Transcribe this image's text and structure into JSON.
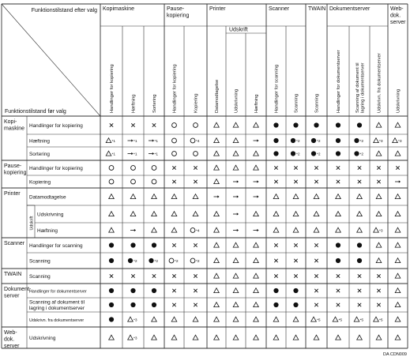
{
  "corner": {
    "top_right": "Funktionstilstand efter valg",
    "bottom_left": "Funktionstilstand før valg"
  },
  "col_groups": [
    {
      "label_lines": [
        "Kopimaskine"
      ]
    },
    {
      "label_lines": [
        "Pause-",
        "kopiering"
      ]
    },
    {
      "label_lines": [
        "Printer"
      ]
    },
    {
      "label_lines": [
        "Scanner"
      ]
    },
    {
      "label_lines": [
        "TWAIN"
      ]
    },
    {
      "label_lines": [
        "Dokumentserver"
      ]
    },
    {
      "label_lines": [
        "Web-",
        "dok.",
        "server"
      ]
    }
  ],
  "printer_subgroup": "Udskrift",
  "col_headers": [
    [
      "Handlinger for kopiering"
    ],
    [
      "Hæftning"
    ],
    [
      "Sortering"
    ],
    [
      "Handlinger for kopiering"
    ],
    [
      "Kopiering"
    ],
    [
      "Datamodtagelse"
    ],
    [
      "Udskrivning"
    ],
    [
      "Hæftning"
    ],
    [
      "Handlinger for scanning"
    ],
    [
      "Scanning"
    ],
    [
      "Scanning"
    ],
    [
      "Handlinger for dokumentserver"
    ],
    [
      "Scanning af dokument til",
      "lagring i dokumentserver"
    ],
    [
      "Udskrivn. fra dokumentserver"
    ],
    [
      "Udskrivning"
    ]
  ],
  "row_groups": [
    {
      "label_lines": [
        "Kopi-",
        "maskine"
      ]
    },
    {
      "label_lines": [
        "Pause-",
        "kopiering"
      ]
    },
    {
      "label_lines": [
        "Printer"
      ]
    },
    {
      "label_lines": [
        "Scanner"
      ]
    },
    {
      "label_lines": [
        "TWAIN"
      ]
    },
    {
      "label_lines": [
        "Dokument-",
        "server"
      ]
    },
    {
      "label_lines": [
        "Web-",
        "dok.",
        "server"
      ]
    }
  ],
  "printer_row_subgroup": "Udskrift",
  "rows": [
    {
      "label": [
        "Handlinger for kopiering"
      ],
      "cells": [
        "x",
        "x",
        "x",
        "o",
        "o",
        "t",
        "t",
        "t",
        "f",
        "f",
        "f",
        "f",
        "f",
        "t",
        "t"
      ]
    },
    {
      "label": [
        "Hæftning"
      ],
      "cells": [
        "t*1",
        "→*1",
        "→*1",
        "o",
        "o*4",
        "t",
        "t",
        "→",
        "f",
        "f*2",
        "f*2",
        "f",
        "f*2",
        "t*3",
        "t*3"
      ]
    },
    {
      "label": [
        "Sortering"
      ],
      "cells": [
        "t*1",
        "→*1",
        "→*1",
        "o",
        "o",
        "t",
        "t",
        "t",
        "f",
        "f*2",
        "f*2",
        "f",
        "f*2",
        "t",
        "t"
      ]
    },
    {
      "label": [
        "Handlinger for kopiering"
      ],
      "cells": [
        "o",
        "o",
        "o",
        "x",
        "x",
        "t",
        "t",
        "t",
        "x",
        "x",
        "x",
        "x",
        "x",
        "x",
        "x"
      ]
    },
    {
      "label": [
        "Kopiering"
      ],
      "cells": [
        "o",
        "o",
        "o",
        "x",
        "x",
        "t",
        "→",
        "→",
        "x",
        "x",
        "x",
        "x",
        "x",
        "x",
        "→"
      ]
    },
    {
      "label": [
        "Datamodtagelse"
      ],
      "cells": [
        "t",
        "t",
        "t",
        "t",
        "t",
        "→",
        "→",
        "→",
        "t",
        "t",
        "t",
        "t",
        "t",
        "t",
        "t"
      ]
    },
    {
      "label": [
        "Udskrivning"
      ],
      "cells": [
        "t",
        "t",
        "t",
        "t",
        "t",
        "t",
        "→",
        "t",
        "t",
        "t",
        "t",
        "t",
        "t",
        "t",
        "t"
      ]
    },
    {
      "label": [
        "Hæftning"
      ],
      "cells": [
        "t",
        "→",
        "t",
        "t",
        "o*4",
        "t",
        "→",
        "→",
        "t",
        "t",
        "t",
        "t",
        "t",
        "t*3",
        "t"
      ]
    },
    {
      "label": [
        "Handlinger for scanning"
      ],
      "cells": [
        "f",
        "f",
        "f",
        "x",
        "x",
        "t",
        "t",
        "t",
        "x",
        "x",
        "x",
        "f",
        "f",
        "t",
        "t"
      ]
    },
    {
      "label": [
        "Scanning"
      ],
      "cells": [
        "f",
        "f*2",
        "f*2",
        "o*2",
        "o*2",
        "t",
        "t",
        "t",
        "x",
        "x",
        "x",
        "f",
        "f",
        "t",
        "t"
      ]
    },
    {
      "label": [
        "Scanning"
      ],
      "cells": [
        "x",
        "x",
        "x",
        "x",
        "x",
        "t",
        "t",
        "t",
        "x",
        "x",
        "x",
        "x",
        "x",
        "x",
        "t"
      ]
    },
    {
      "label": [
        "Handlinger for dokumentserver"
      ],
      "cells": [
        "f",
        "f",
        "f",
        "x",
        "x",
        "t",
        "t",
        "t",
        "f",
        "f",
        "x",
        "x",
        "x",
        "x",
        "t"
      ]
    },
    {
      "label": [
        "Scanning af dokument til",
        "lagring i dokumentserver"
      ],
      "cells": [
        "f",
        "f",
        "f",
        "x",
        "x",
        "t",
        "t",
        "t",
        "f",
        "f",
        "x",
        "x",
        "x",
        "x",
        "t"
      ]
    },
    {
      "label": [
        "Udskrivn. fra dokumentserver"
      ],
      "cells": [
        "f",
        "t*3",
        "t",
        "t",
        "t",
        "t",
        "t",
        "t",
        "t",
        "t",
        "t*5",
        "t*5",
        "t*5",
        "t*5",
        "t"
      ]
    },
    {
      "label": [
        "Udskrivning"
      ],
      "cells": [
        "t",
        "t*3",
        "t",
        "t",
        "t",
        "t",
        "t",
        "t",
        "t",
        "t",
        "t",
        "t",
        "t",
        "t",
        "t"
      ]
    }
  ],
  "footer_code": "DA CDN009"
}
